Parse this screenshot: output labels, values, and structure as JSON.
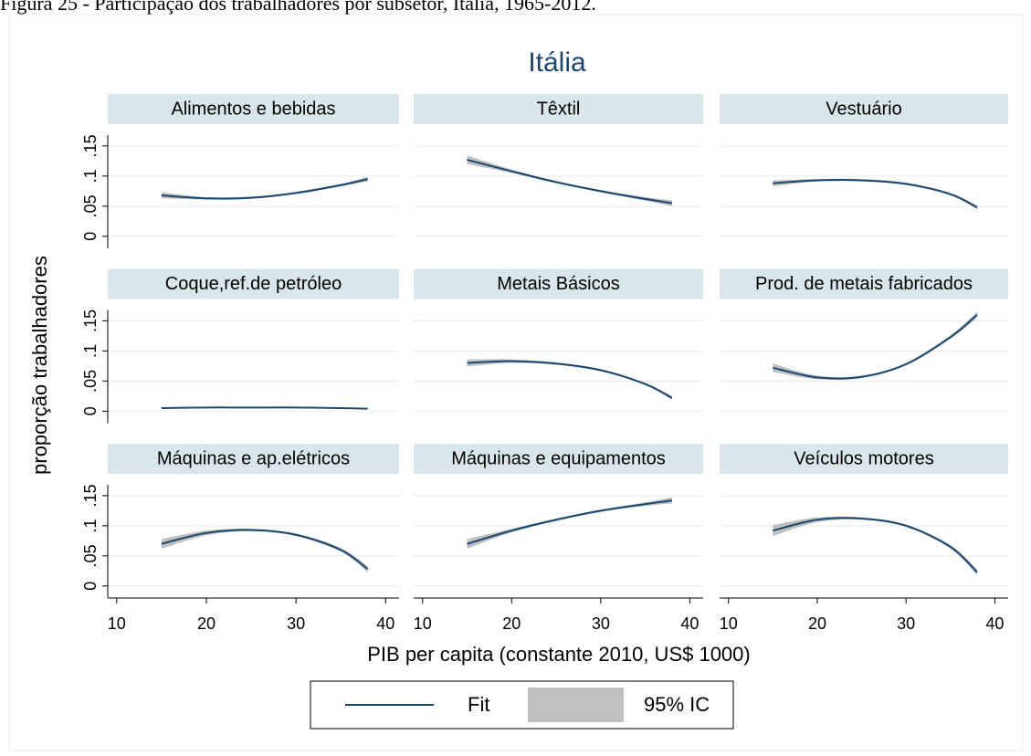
{
  "caption": "Figura 25 - Participação dos trabalhadores por subsetor, Itália, 1965-2012.",
  "chart_data": {
    "type": "line",
    "title": "Itália",
    "x_label": "PIB per capita (constante 2010, US$ 1000)",
    "y_label": "proporção trabalhadores",
    "x": [
      15,
      20,
      25,
      30,
      35,
      38
    ],
    "xlim": [
      9,
      41.5
    ],
    "xticks": [
      10,
      20,
      30,
      40
    ],
    "ylim": [
      -0.02,
      0.168
    ],
    "yticks": [
      0,
      {
        "value": 0.05,
        "label": ".05"
      },
      {
        "value": 0.1,
        "label": ".1"
      },
      {
        "value": 0.15,
        "label": ".15"
      }
    ],
    "grid": true,
    "fit_color": "#1a476f",
    "ci_color": "#c0c0c0",
    "legend": {
      "fit": "Fit",
      "ci": "95% IC"
    },
    "facets": [
      {
        "title": "Alimentos e bebidas",
        "values": [
          0.068,
          0.063,
          0.064,
          0.072,
          0.085,
          0.095
        ],
        "lower": [
          0.063,
          0.061,
          0.062,
          0.07,
          0.083,
          0.091
        ],
        "upper": [
          0.073,
          0.065,
          0.066,
          0.074,
          0.087,
          0.099
        ]
      },
      {
        "title": "Têxtil",
        "values": [
          0.127,
          0.108,
          0.09,
          0.075,
          0.062,
          0.055
        ],
        "lower": [
          0.12,
          0.105,
          0.088,
          0.073,
          0.059,
          0.05
        ],
        "upper": [
          0.134,
          0.111,
          0.092,
          0.077,
          0.065,
          0.06
        ]
      },
      {
        "title": "Vestuário",
        "values": [
          0.088,
          0.093,
          0.093,
          0.087,
          0.07,
          0.048
        ],
        "lower": [
          0.083,
          0.091,
          0.091,
          0.085,
          0.068,
          0.045
        ],
        "upper": [
          0.093,
          0.095,
          0.095,
          0.089,
          0.072,
          0.051
        ]
      },
      {
        "title": "Coque,ref.de petróleo",
        "values": [
          0.005,
          0.006,
          0.006,
          0.006,
          0.005,
          0.004
        ],
        "lower": [
          0.004,
          0.005,
          0.005,
          0.005,
          0.004,
          0.003
        ],
        "upper": [
          0.006,
          0.007,
          0.007,
          0.007,
          0.006,
          0.005
        ]
      },
      {
        "title": "Metais Básicos",
        "values": [
          0.08,
          0.083,
          0.079,
          0.068,
          0.045,
          0.022
        ],
        "lower": [
          0.074,
          0.08,
          0.077,
          0.066,
          0.043,
          0.019
        ],
        "upper": [
          0.086,
          0.086,
          0.081,
          0.07,
          0.047,
          0.025
        ]
      },
      {
        "title": "Prod. de metais fabricados",
        "values": [
          0.072,
          0.056,
          0.057,
          0.078,
          0.123,
          0.16
        ],
        "lower": [
          0.065,
          0.053,
          0.055,
          0.076,
          0.12,
          0.155
        ],
        "upper": [
          0.079,
          0.059,
          0.059,
          0.08,
          0.126,
          0.165
        ]
      },
      {
        "title": "Máquinas e ap.elétricos",
        "values": [
          0.07,
          0.088,
          0.093,
          0.085,
          0.06,
          0.028
        ],
        "lower": [
          0.062,
          0.084,
          0.091,
          0.083,
          0.057,
          0.023
        ],
        "upper": [
          0.078,
          0.092,
          0.095,
          0.087,
          0.063,
          0.033
        ]
      },
      {
        "title": "Máquinas e equipamentos",
        "values": [
          0.07,
          0.092,
          0.11,
          0.125,
          0.136,
          0.142
        ],
        "lower": [
          0.062,
          0.089,
          0.108,
          0.123,
          0.133,
          0.137
        ],
        "upper": [
          0.078,
          0.095,
          0.112,
          0.127,
          0.139,
          0.147
        ]
      },
      {
        "title": "Veículos motores",
        "values": [
          0.092,
          0.11,
          0.112,
          0.1,
          0.065,
          0.023
        ],
        "lower": [
          0.083,
          0.106,
          0.11,
          0.098,
          0.062,
          0.018
        ],
        "upper": [
          0.101,
          0.114,
          0.114,
          0.102,
          0.068,
          0.028
        ]
      }
    ]
  }
}
